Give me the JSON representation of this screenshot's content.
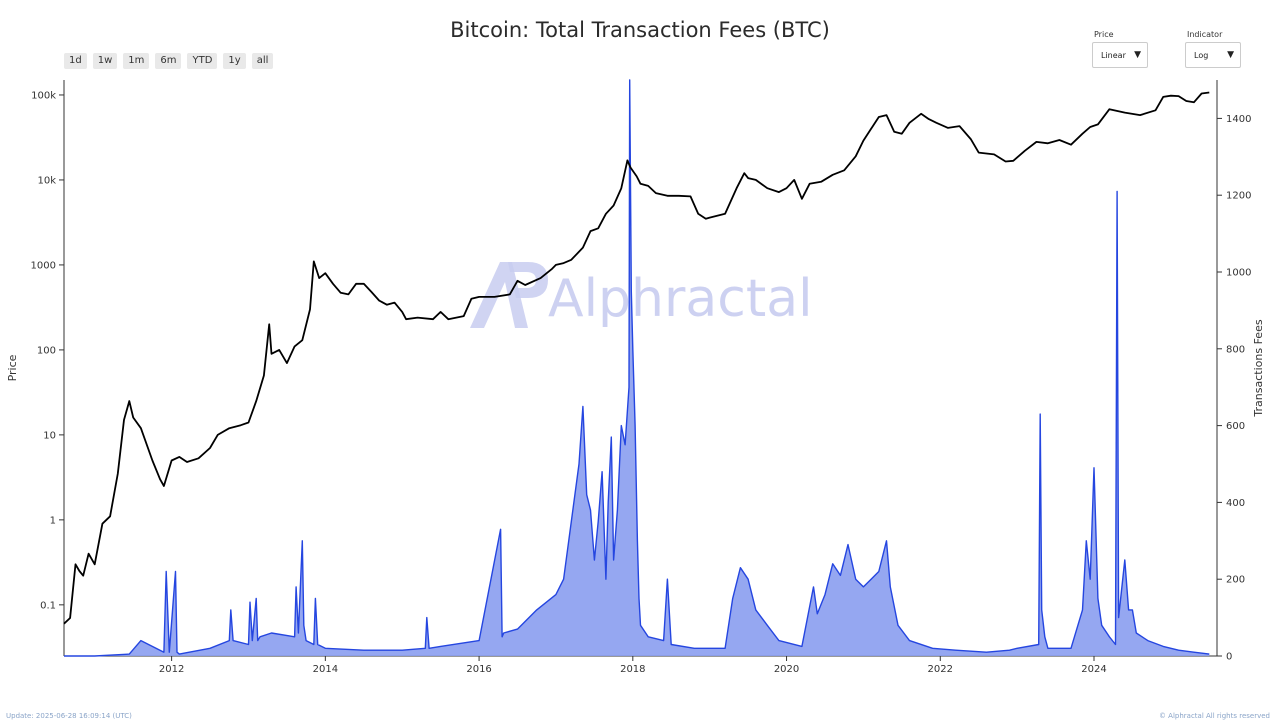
{
  "title": "Bitcoin: Total Transaction Fees (BTC)",
  "range_buttons": [
    "1d",
    "1w",
    "1m",
    "6m",
    "YTD",
    "1y",
    "all"
  ],
  "controls": {
    "price": {
      "label": "Price",
      "value": "Linear"
    },
    "indicator": {
      "label": "Indicator",
      "value": "Log"
    }
  },
  "watermark": "Alphractal",
  "footer": {
    "left": "Update: 2025-06-28 16:09:14 (UTC)",
    "right": "© Alphractal All rights reserved"
  },
  "colors": {
    "price_line": "#000000",
    "fees_line": "#2546e0",
    "fees_fill": "#8a9df0",
    "watermark": "#c8cdf0"
  },
  "chart_data": {
    "type": "line",
    "xlim": [
      2010.6,
      2025.6
    ],
    "x_ticks": [
      "2012",
      "2014",
      "2016",
      "2018",
      "2020",
      "2022",
      "2024"
    ],
    "y_left": {
      "label": "Price",
      "scale": "log",
      "ylim": [
        0.025,
        150000
      ],
      "ticks": [
        "0.1",
        "1",
        "10",
        "100",
        "1000",
        "10k",
        "100k"
      ]
    },
    "y_right": {
      "label": "Transactions Fees",
      "ylim": [
        0,
        1500
      ],
      "ticks": [
        "0",
        "200",
        "400",
        "600",
        "800",
        "1000",
        "1200",
        "1400"
      ]
    },
    "series": [
      {
        "name": "Price",
        "axis": "left",
        "x": [
          2010.6,
          2010.68,
          2010.75,
          2010.8,
          2010.85,
          2010.92,
          2011.0,
          2011.1,
          2011.2,
          2011.3,
          2011.38,
          2011.45,
          2011.5,
          2011.6,
          2011.75,
          2011.85,
          2011.9,
          2012.0,
          2012.1,
          2012.2,
          2012.35,
          2012.5,
          2012.6,
          2012.75,
          2012.9,
          2013.0,
          2013.1,
          2013.2,
          2013.27,
          2013.3,
          2013.4,
          2013.5,
          2013.6,
          2013.7,
          2013.8,
          2013.85,
          2013.92,
          2014.0,
          2014.1,
          2014.2,
          2014.3,
          2014.4,
          2014.5,
          2014.6,
          2014.7,
          2014.8,
          2014.9,
          2015.0,
          2015.05,
          2015.2,
          2015.4,
          2015.5,
          2015.6,
          2015.8,
          2015.9,
          2016.0,
          2016.2,
          2016.4,
          2016.5,
          2016.6,
          2016.8,
          2016.95,
          2017.0,
          2017.1,
          2017.2,
          2017.35,
          2017.45,
          2017.55,
          2017.65,
          2017.75,
          2017.85,
          2017.93,
          2017.97,
          2018.05,
          2018.1,
          2018.2,
          2018.3,
          2018.45,
          2018.6,
          2018.75,
          2018.85,
          2018.95,
          2019.0,
          2019.2,
          2019.35,
          2019.45,
          2019.5,
          2019.6,
          2019.75,
          2019.9,
          2020.0,
          2020.1,
          2020.2,
          2020.3,
          2020.45,
          2020.6,
          2020.75,
          2020.9,
          2021.0,
          2021.1,
          2021.2,
          2021.3,
          2021.4,
          2021.5,
          2021.6,
          2021.75,
          2021.85,
          2021.95,
          2022.1,
          2022.25,
          2022.4,
          2022.5,
          2022.7,
          2022.85,
          2022.95,
          2023.1,
          2023.25,
          2023.4,
          2023.55,
          2023.7,
          2023.85,
          2023.95,
          2024.05,
          2024.2,
          2024.4,
          2024.6,
          2024.8,
          2024.9,
          2025.0,
          2025.1,
          2025.2,
          2025.3,
          2025.4,
          2025.5
        ],
        "values": [
          0.06,
          0.07,
          0.3,
          0.25,
          0.22,
          0.4,
          0.3,
          0.9,
          1.1,
          3.5,
          15,
          25,
          16,
          12,
          5,
          3,
          2.5,
          5,
          5.5,
          4.8,
          5.3,
          7,
          10,
          12,
          13,
          14,
          25,
          50,
          200,
          90,
          100,
          70,
          110,
          130,
          300,
          1100,
          700,
          800,
          600,
          470,
          450,
          600,
          600,
          480,
          380,
          340,
          360,
          280,
          230,
          240,
          230,
          280,
          230,
          250,
          400,
          420,
          420,
          450,
          650,
          580,
          700,
          900,
          1000,
          1050,
          1150,
          1600,
          2500,
          2700,
          4000,
          5000,
          8000,
          17000,
          14000,
          11000,
          9000,
          8500,
          7000,
          6500,
          6500,
          6400,
          4000,
          3500,
          3600,
          4000,
          8000,
          12000,
          10500,
          10000,
          8000,
          7200,
          8000,
          10000,
          6000,
          9000,
          9500,
          11500,
          13000,
          19000,
          29000,
          40000,
          55000,
          58000,
          37000,
          35000,
          47000,
          60000,
          52000,
          47000,
          41000,
          43000,
          30000,
          21000,
          20000,
          16500,
          16800,
          22000,
          28000,
          27000,
          29500,
          26000,
          35000,
          42000,
          45000,
          68000,
          62000,
          58000,
          66000,
          95000,
          98000,
          97000,
          85000,
          82000,
          104000,
          107000
        ]
      },
      {
        "name": "Transactions Fees",
        "axis": "right",
        "x": [
          2010.6,
          2011.0,
          2011.45,
          2011.6,
          2011.9,
          2011.93,
          2011.97,
          2012.05,
          2012.07,
          2012.1,
          2012.5,
          2012.75,
          2012.77,
          2012.8,
          2013.0,
          2013.02,
          2013.05,
          2013.1,
          2013.12,
          2013.15,
          2013.3,
          2013.6,
          2013.62,
          2013.65,
          2013.7,
          2013.72,
          2013.75,
          2013.85,
          2013.87,
          2013.9,
          2014.0,
          2014.5,
          2015.0,
          2015.3,
          2015.32,
          2015.35,
          2015.5,
          2016.0,
          2016.28,
          2016.3,
          2016.32,
          2016.5,
          2016.75,
          2017.0,
          2017.1,
          2017.2,
          2017.3,
          2017.35,
          2017.4,
          2017.45,
          2017.5,
          2017.55,
          2017.6,
          2017.65,
          2017.68,
          2017.72,
          2017.75,
          2017.8,
          2017.85,
          2017.9,
          2017.95,
          2017.96,
          2017.98,
          2018.0,
          2018.03,
          2018.06,
          2018.08,
          2018.1,
          2018.2,
          2018.4,
          2018.45,
          2018.5,
          2018.8,
          2019.2,
          2019.3,
          2019.4,
          2019.5,
          2019.6,
          2019.75,
          2019.9,
          2020.2,
          2020.35,
          2020.4,
          2020.5,
          2020.6,
          2020.7,
          2020.8,
          2020.9,
          2021.0,
          2021.1,
          2021.2,
          2021.3,
          2021.35,
          2021.45,
          2021.6,
          2021.9,
          2022.2,
          2022.6,
          2022.9,
          2023.0,
          2023.28,
          2023.3,
          2023.32,
          2023.36,
          2023.4,
          2023.7,
          2023.85,
          2023.9,
          2023.95,
          2024.0,
          2024.05,
          2024.1,
          2024.2,
          2024.28,
          2024.3,
          2024.32,
          2024.4,
          2024.45,
          2024.5,
          2024.55,
          2024.7,
          2024.9,
          2025.1,
          2025.3,
          2025.5
        ],
        "values": [
          0,
          0,
          5,
          40,
          10,
          220,
          10,
          220,
          10,
          5,
          20,
          40,
          120,
          40,
          30,
          140,
          40,
          150,
          40,
          50,
          60,
          50,
          180,
          60,
          300,
          80,
          40,
          30,
          150,
          30,
          20,
          15,
          15,
          20,
          100,
          20,
          25,
          40,
          330,
          50,
          60,
          70,
          120,
          160,
          200,
          350,
          500,
          650,
          420,
          380,
          250,
          350,
          480,
          200,
          400,
          570,
          250,
          380,
          600,
          550,
          700,
          1500,
          950,
          800,
          600,
          300,
          150,
          80,
          50,
          40,
          200,
          30,
          20,
          20,
          150,
          230,
          200,
          120,
          80,
          40,
          25,
          180,
          110,
          160,
          240,
          210,
          290,
          200,
          180,
          200,
          220,
          300,
          180,
          80,
          40,
          20,
          15,
          10,
          15,
          20,
          30,
          630,
          120,
          50,
          20,
          20,
          120,
          300,
          200,
          490,
          150,
          80,
          50,
          30,
          1210,
          100,
          250,
          120,
          120,
          60,
          40,
          25,
          15,
          10,
          5
        ]
      }
    ]
  }
}
